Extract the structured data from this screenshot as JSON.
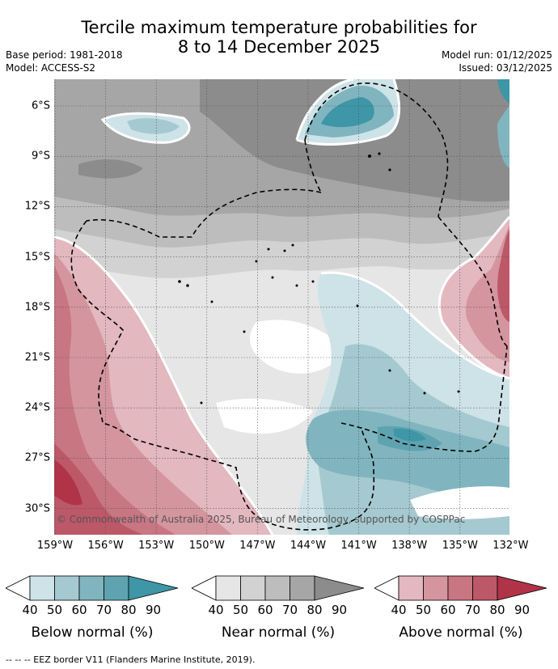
{
  "title_line1": "Tercile maximum temperature probabilities for",
  "title_line2": "8 to 14 December 2025",
  "base_period": "Base period: 1981-2018",
  "model": "Model: ACCESS-S2",
  "model_run": "Model run: 01/12/2025",
  "issued": "Issued: 03/12/2025",
  "lat_labels": [
    "6°S",
    "9°S",
    "12°S",
    "15°S",
    "18°S",
    "21°S",
    "24°S",
    "27°S",
    "30°S"
  ],
  "lon_labels": [
    "159°W",
    "156°W",
    "153°W",
    "150°W",
    "147°W",
    "144°W",
    "141°W",
    "138°W",
    "135°W",
    "132°W"
  ],
  "credit": "© Commonwealth of Australia 2025, Bureau of Meteorology, supported by COSPPac",
  "colorbars": [
    {
      "name": "Below normal (%)",
      "ticks": [
        "40",
        "50",
        "60",
        "70",
        "80",
        "90"
      ],
      "colors": [
        "#ffffff",
        "#cde3e8",
        "#a5c9d0",
        "#80b5bf",
        "#5fa3b0",
        "#3e96a6"
      ]
    },
    {
      "name": "Near normal (%)",
      "ticks": [
        "40",
        "50",
        "60",
        "70",
        "80",
        "90"
      ],
      "colors": [
        "#ffffff",
        "#e6e6e6",
        "#d2d2d2",
        "#bdbdbd",
        "#a6a6a6",
        "#8c8c8c"
      ]
    },
    {
      "name": "Above normal (%)",
      "ticks": [
        "40",
        "50",
        "60",
        "70",
        "80",
        "90"
      ],
      "colors": [
        "#ffffff",
        "#e3b8bf",
        "#d4959f",
        "#c77682",
        "#bc5868",
        "#b03347"
      ]
    }
  ],
  "footnote": "--  --  -- EEZ border V11 (Flanders Marine Institute, 2019)."
}
